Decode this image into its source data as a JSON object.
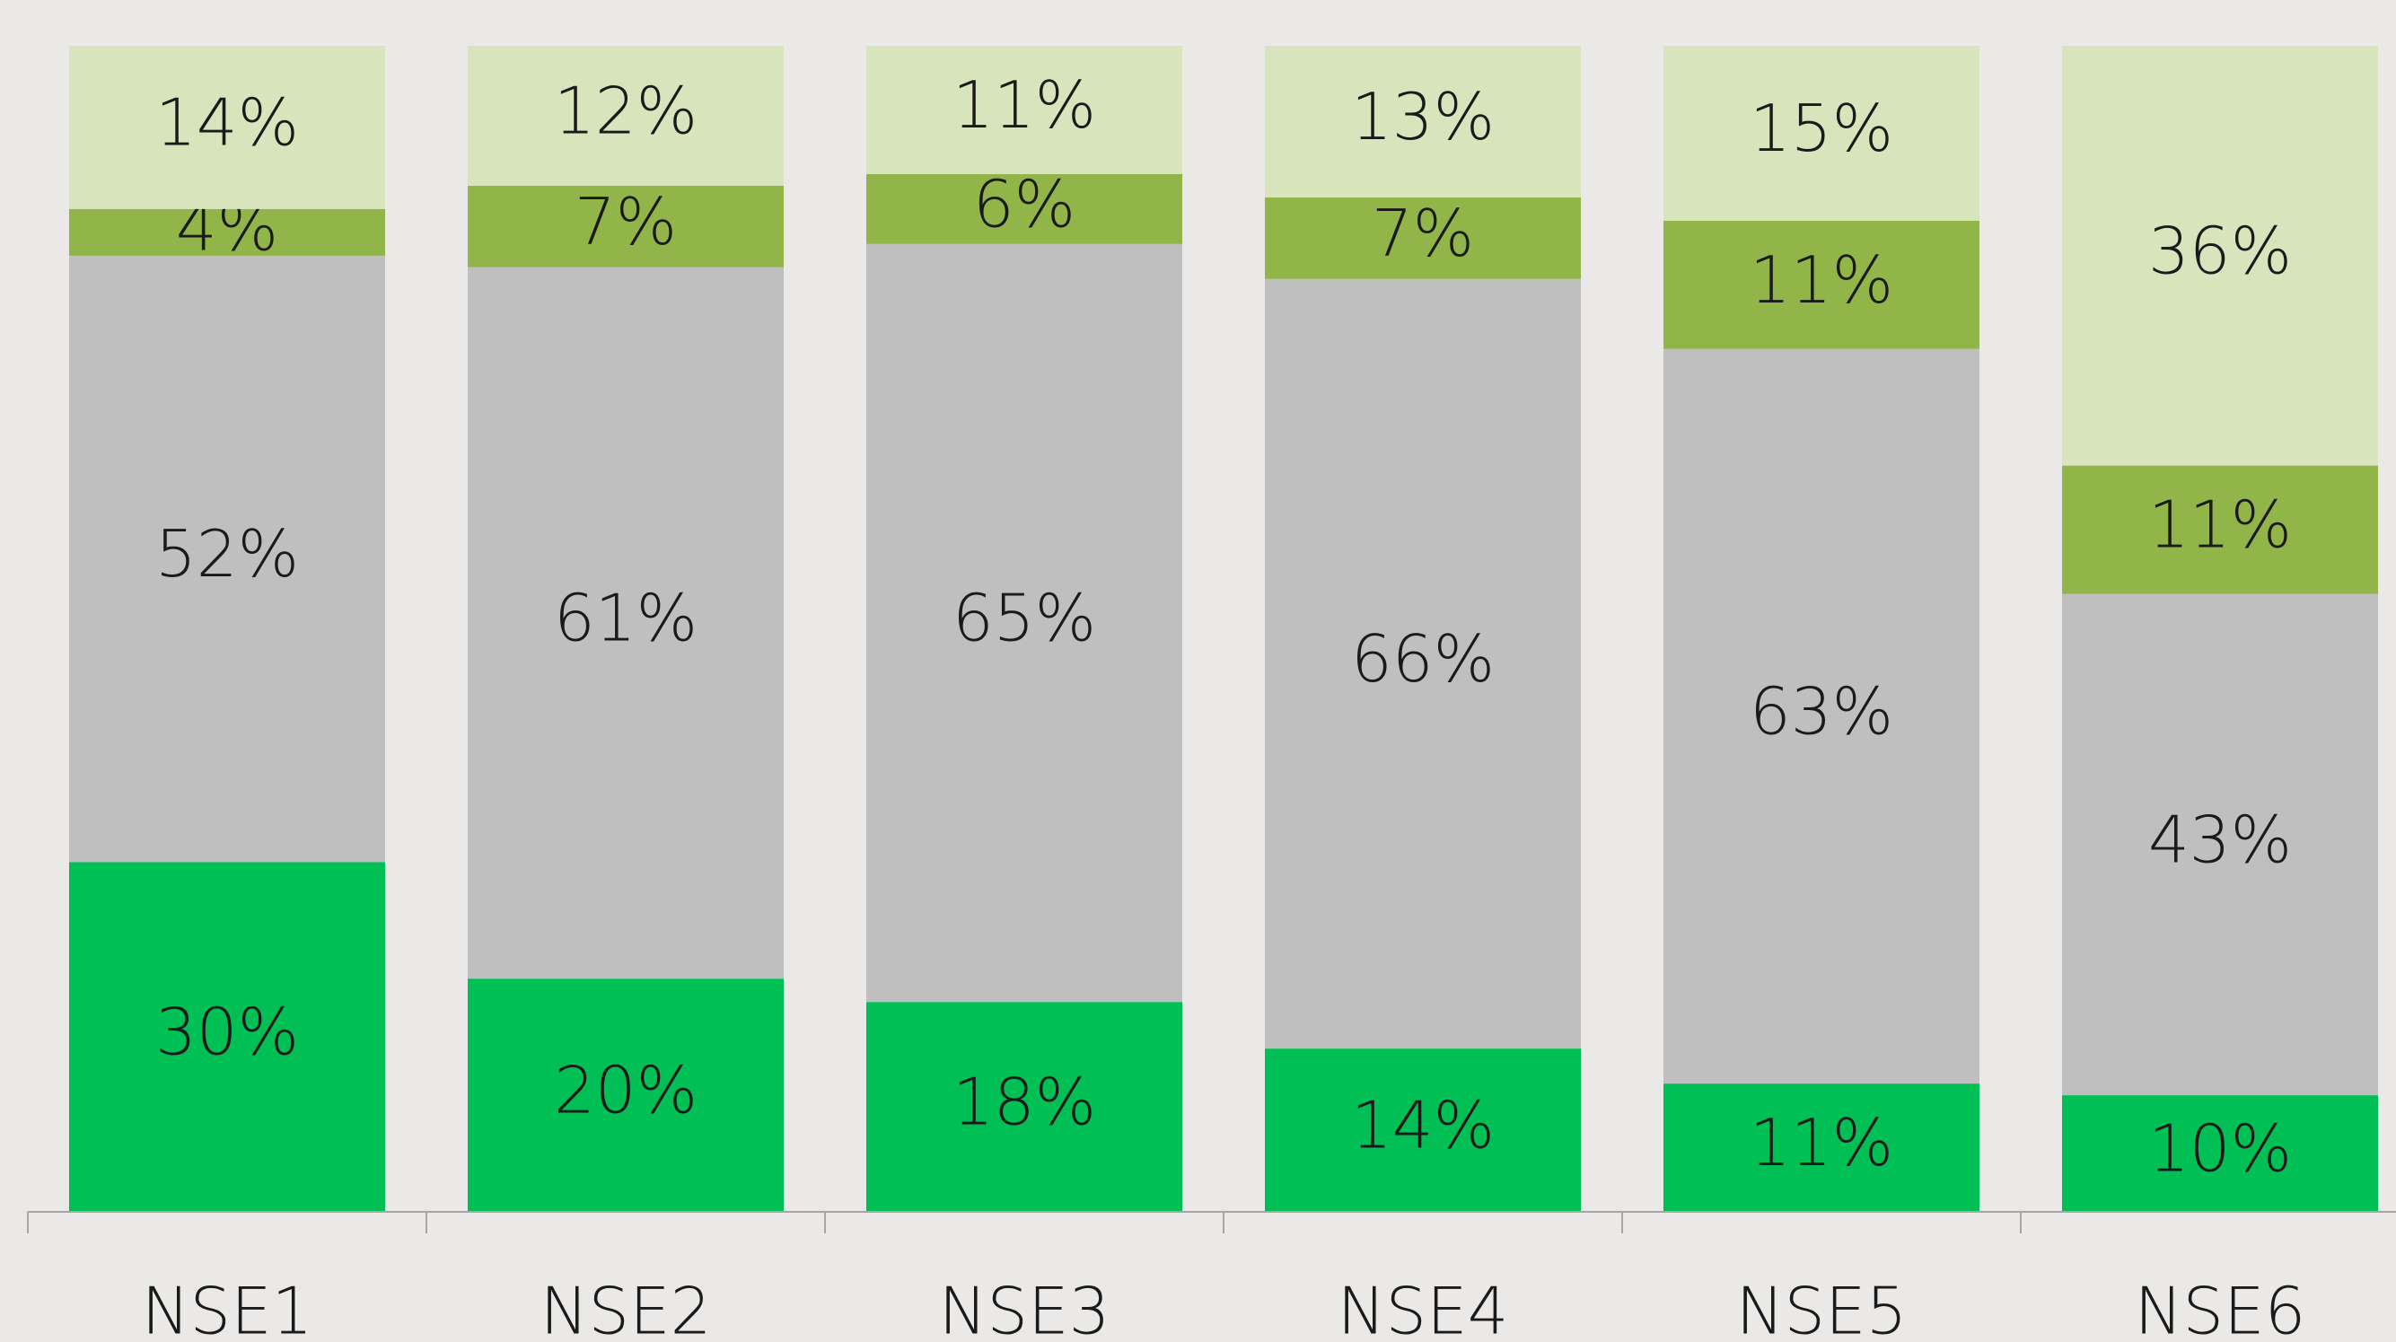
{
  "chart_data": {
    "type": "stacked_bar",
    "categories": [
      "NSE1",
      "NSE2",
      "NSE3",
      "NSE4",
      "NSE5",
      "NSE6"
    ],
    "ylim": [
      0,
      100
    ],
    "series": [
      {
        "color": "#00bf55",
        "values": [
          30,
          20,
          18,
          14,
          11,
          10
        ],
        "value_labels": [
          "30%",
          "20%",
          "18%",
          "14%",
          "11%",
          "10%"
        ]
      },
      {
        "color": "#bfbfbf",
        "values": [
          52,
          61,
          65,
          66,
          63,
          43
        ],
        "value_labels": [
          "52%",
          "61%",
          "65%",
          "66%",
          "63%",
          "43%"
        ]
      },
      {
        "color": "#92b54a",
        "values": [
          4,
          7,
          6,
          7,
          11,
          11
        ],
        "value_labels": [
          "4%",
          "7%",
          "6%",
          "7%",
          "11%",
          "11%"
        ]
      },
      {
        "color": "#d8e4bc",
        "values": [
          14,
          12,
          11,
          13,
          15,
          36
        ],
        "value_labels": [
          "14%",
          "12%",
          "11%",
          "13%",
          "15%",
          "36%"
        ]
      }
    ]
  }
}
